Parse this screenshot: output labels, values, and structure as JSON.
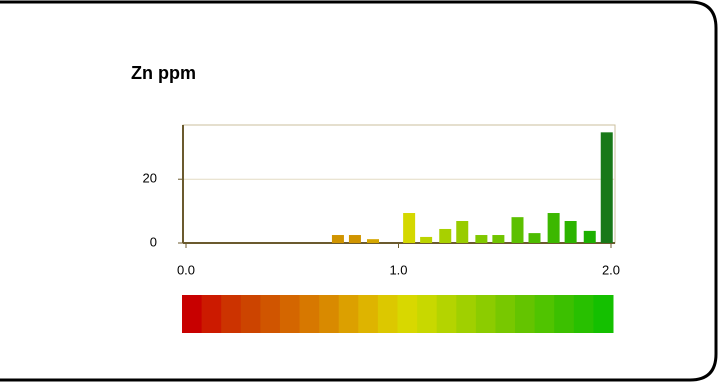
{
  "chart_data": {
    "type": "bar",
    "title": "Zn  ppm",
    "x": [
      0.715,
      0.795,
      0.88,
      1.05,
      1.13,
      1.22,
      1.3,
      1.39,
      1.47,
      1.56,
      1.64,
      1.73,
      1.81,
      1.9,
      1.98
    ],
    "values": [
      2.5,
      2.5,
      1.2,
      9.4,
      1.9,
      4.4,
      6.9,
      2.5,
      2.5,
      8.1,
      3.1,
      9.4,
      6.9,
      3.8,
      34.7
    ],
    "colors": [
      "#d09400",
      "#d09400",
      "#d4a600",
      "#d4d800",
      "#bcd400",
      "#a8d000",
      "#98cc00",
      "#80c800",
      "#70c400",
      "#5cc000",
      "#4cbc00",
      "#3cb800",
      "#2cb400",
      "#1cb000",
      "#187818"
    ],
    "xlim": [
      0,
      2
    ],
    "xticks": [
      {
        "value": 0,
        "label": "0.0"
      },
      {
        "value": 1,
        "label": "1.0"
      },
      {
        "value": 2,
        "label": "2.0"
      }
    ],
    "ylim": [
      0,
      37
    ],
    "yticks": [
      0,
      20
    ],
    "grid": true,
    "colorbar": [
      "#c80000",
      "#cc1a00",
      "#cc3300",
      "#cc4400",
      "#d05500",
      "#d46600",
      "#d77800",
      "#d98a00",
      "#dca000",
      "#deb400",
      "#dcc800",
      "#d8d800",
      "#c8d800",
      "#b4d400",
      "#a0d000",
      "#8ccc00",
      "#78c800",
      "#64c400",
      "#50c400",
      "#3cc000",
      "#28c000",
      "#14c000"
    ]
  }
}
